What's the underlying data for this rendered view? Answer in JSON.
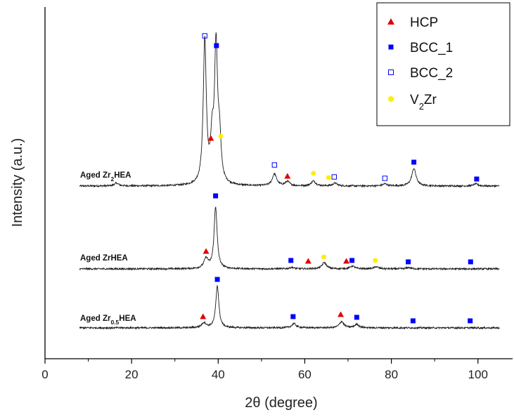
{
  "chart_data": {
    "type": "line",
    "xlabel": "2θ (degree)",
    "ylabel": "Intensity (a.u.)",
    "xlim": [
      0,
      108
    ],
    "xticks": [
      0,
      20,
      40,
      60,
      80,
      100
    ],
    "y_ticks_shown": false,
    "grid": false,
    "legend_position": "top-right",
    "legend": [
      {
        "label": "HCP",
        "marker": "filled-triangle",
        "color": "#e00000"
      },
      {
        "label": "BCC_1",
        "marker": "filled-square",
        "color": "#0000ff"
      },
      {
        "label": "BCC_2",
        "marker": "open-square",
        "color": "#0000ff"
      },
      {
        "label_main": "V",
        "label_sub": "2",
        "label_tail": "Zr",
        "marker": "filled-circle",
        "color": "#ffee00"
      }
    ],
    "traces": [
      {
        "label_main": "Aged Zr",
        "label_sub": "2",
        "label_tail": "HEA",
        "x_range": [
          8,
          105
        ],
        "peaks": [
          {
            "x": 16.5,
            "h": 4
          },
          {
            "x": 36.9,
            "h": 205
          },
          {
            "x": 38.6,
            "h": 55
          },
          {
            "x": 39.5,
            "h": 192
          },
          {
            "x": 40.3,
            "h": 58
          },
          {
            "x": 53.0,
            "h": 17
          },
          {
            "x": 56.0,
            "h": 6
          },
          {
            "x": 62.0,
            "h": 7
          },
          {
            "x": 67.0,
            "h": 4
          },
          {
            "x": 78.5,
            "h": 3
          },
          {
            "x": 85.2,
            "h": 25
          },
          {
            "x": 99.5,
            "h": 3
          }
        ],
        "markers": [
          {
            "phase": "BCC_2",
            "x": 36.9,
            "h": 214
          },
          {
            "phase": "BCC_1",
            "x": 39.6,
            "h": 200
          },
          {
            "phase": "HCP",
            "x": 38.3,
            "h": 68
          },
          {
            "phase": "V2Zr",
            "x": 40.6,
            "h": 71
          },
          {
            "phase": "BCC_2",
            "x": 53.0,
            "h": 30
          },
          {
            "phase": "HCP",
            "x": 56.0,
            "h": 14
          },
          {
            "phase": "V2Zr",
            "x": 62.0,
            "h": 18
          },
          {
            "phase": "V2Zr",
            "x": 65.5,
            "h": 12
          },
          {
            "phase": "BCC_2",
            "x": 66.8,
            "h": 13
          },
          {
            "phase": "BCC_2",
            "x": 78.5,
            "h": 11
          },
          {
            "phase": "BCC_1",
            "x": 85.2,
            "h": 34
          },
          {
            "phase": "BCC_1",
            "x": 99.7,
            "h": 10
          }
        ]
      },
      {
        "label_main": "Aged ZrHEA",
        "label_sub": "",
        "label_tail": "",
        "x_range": [
          8,
          105
        ],
        "peaks": [
          {
            "x": 37.2,
            "h": 14
          },
          {
            "x": 39.4,
            "h": 88
          },
          {
            "x": 57.0,
            "h": 2
          },
          {
            "x": 64.5,
            "h": 9
          },
          {
            "x": 71.0,
            "h": 4
          },
          {
            "x": 76.5,
            "h": 3
          },
          {
            "x": 84.0,
            "h": 2
          }
        ],
        "markers": [
          {
            "phase": "BCC_1",
            "x": 39.4,
            "h": 104
          },
          {
            "phase": "HCP",
            "x": 37.2,
            "h": 25
          },
          {
            "phase": "BCC_1",
            "x": 56.8,
            "h": 12
          },
          {
            "phase": "HCP",
            "x": 60.8,
            "h": 11
          },
          {
            "phase": "V2Zr",
            "x": 64.4,
            "h": 17
          },
          {
            "phase": "HCP",
            "x": 69.6,
            "h": 11
          },
          {
            "phase": "BCC_1",
            "x": 70.9,
            "h": 12
          },
          {
            "phase": "V2Zr",
            "x": 76.3,
            "h": 12
          },
          {
            "phase": "BCC_1",
            "x": 83.9,
            "h": 10
          },
          {
            "phase": "BCC_1",
            "x": 98.3,
            "h": 10
          }
        ]
      },
      {
        "label_main": "Aged Zr",
        "label_sub": "0.5",
        "label_tail": "HEA",
        "x_range": [
          8,
          105
        ],
        "peaks": [
          {
            "x": 36.7,
            "h": 7
          },
          {
            "x": 39.8,
            "h": 60
          },
          {
            "x": 57.5,
            "h": 6
          },
          {
            "x": 68.5,
            "h": 9
          },
          {
            "x": 72.0,
            "h": 5
          }
        ],
        "markers": [
          {
            "phase": "BCC_1",
            "x": 39.8,
            "h": 69
          },
          {
            "phase": "HCP",
            "x": 36.5,
            "h": 16
          },
          {
            "phase": "BCC_1",
            "x": 57.3,
            "h": 16
          },
          {
            "phase": "HCP",
            "x": 68.3,
            "h": 19
          },
          {
            "phase": "BCC_1",
            "x": 72.0,
            "h": 15
          },
          {
            "phase": "BCC_1",
            "x": 85.0,
            "h": 10
          },
          {
            "phase": "BCC_1",
            "x": 98.2,
            "h": 10
          }
        ]
      }
    ]
  }
}
